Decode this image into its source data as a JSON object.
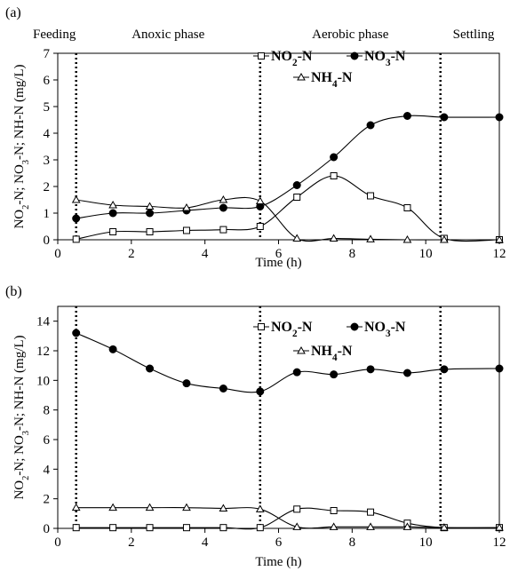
{
  "chart_data": [
    {
      "panel_label": "(a)",
      "type": "line",
      "xlabel": "Time (h)",
      "ylabel": "NO2-N; NO3-N; NH-N (mg/L)",
      "xlim": [
        0,
        12
      ],
      "ylim": [
        0,
        7
      ],
      "xticks": [
        0,
        2,
        4,
        6,
        8,
        10,
        12
      ],
      "yticks": [
        0,
        1,
        2,
        3,
        4,
        5,
        6,
        7
      ],
      "xtick_labels": [
        "0",
        "2",
        "4",
        "6",
        "8",
        "10",
        "12"
      ],
      "ytick_labels": [
        "0",
        "1",
        "2",
        "3",
        "4",
        "5",
        "6",
        "7"
      ],
      "phase_lines": [
        0.5,
        5.5,
        10.4
      ],
      "phases": [
        "Feeding",
        "Anoxic phase",
        "Aerobic phase",
        "Settling"
      ],
      "grid": false,
      "legend_position": "top-right",
      "series": [
        {
          "name": "NO2-N",
          "marker": "square-open",
          "x": [
            0.5,
            1.5,
            2.5,
            3.5,
            4.5,
            5.5,
            6.5,
            7.5,
            8.5,
            9.5,
            10.5,
            12
          ],
          "values": [
            0.02,
            0.3,
            0.3,
            0.35,
            0.38,
            0.5,
            1.6,
            2.4,
            1.65,
            1.2,
            0.05,
            0.0
          ]
        },
        {
          "name": "NO3-N",
          "marker": "circle-filled",
          "x": [
            0.5,
            1.5,
            2.5,
            3.5,
            4.5,
            5.5,
            6.5,
            7.5,
            8.5,
            9.5,
            10.5,
            12
          ],
          "values": [
            0.8,
            1.0,
            1.0,
            1.1,
            1.2,
            1.25,
            2.05,
            3.1,
            4.3,
            4.65,
            4.6,
            4.6
          ]
        },
        {
          "name": "NH4-N",
          "marker": "triangle-open",
          "x": [
            0.5,
            1.5,
            2.5,
            3.5,
            4.5,
            5.5,
            6.5,
            7.5,
            8.5,
            9.5,
            10.5,
            12
          ],
          "values": [
            1.5,
            1.3,
            1.25,
            1.2,
            1.5,
            1.45,
            0.05,
            0.05,
            0.02,
            0.0,
            0.0,
            0.0
          ]
        }
      ]
    },
    {
      "panel_label": "(b)",
      "type": "line",
      "xlabel": "Time (h)",
      "ylabel": "NO2-N; NO3-N; NH-N (mg/L)",
      "xlim": [
        0,
        12
      ],
      "ylim": [
        0,
        15
      ],
      "xticks": [
        0,
        2,
        4,
        6,
        8,
        10,
        12
      ],
      "yticks": [
        0,
        2,
        4,
        6,
        8,
        10,
        12,
        14
      ],
      "xtick_labels": [
        "0",
        "2",
        "4",
        "6",
        "8",
        "10",
        "12"
      ],
      "ytick_labels": [
        "0",
        "2",
        "4",
        "6",
        "8",
        "10",
        "12",
        "14"
      ],
      "phase_lines": [
        0.5,
        5.5,
        10.4
      ],
      "grid": false,
      "legend_position": "top-right",
      "series": [
        {
          "name": "NO2-N",
          "marker": "square-open",
          "x": [
            0.5,
            1.5,
            2.5,
            3.5,
            4.5,
            5.5,
            6.5,
            7.5,
            8.5,
            9.5,
            10.5,
            12
          ],
          "values": [
            0.05,
            0.05,
            0.05,
            0.05,
            0.05,
            0.05,
            1.3,
            1.2,
            1.1,
            0.35,
            0.05,
            0.05
          ]
        },
        {
          "name": "NO3-N",
          "marker": "circle-filled",
          "x": [
            0.5,
            1.5,
            2.5,
            3.5,
            4.5,
            5.5,
            6.5,
            7.5,
            8.5,
            9.5,
            10.5,
            12
          ],
          "values": [
            13.2,
            12.1,
            10.8,
            9.8,
            9.45,
            9.25,
            10.55,
            10.4,
            10.75,
            10.5,
            10.75,
            10.8
          ]
        },
        {
          "name": "NH4-N",
          "marker": "triangle-open",
          "x": [
            0.5,
            1.5,
            2.5,
            3.5,
            4.5,
            5.5,
            6.5,
            7.5,
            8.5,
            9.5,
            10.5,
            12
          ],
          "values": [
            1.4,
            1.4,
            1.4,
            1.4,
            1.35,
            1.3,
            0.1,
            0.1,
            0.1,
            0.1,
            0.05,
            0.05
          ]
        }
      ]
    }
  ]
}
